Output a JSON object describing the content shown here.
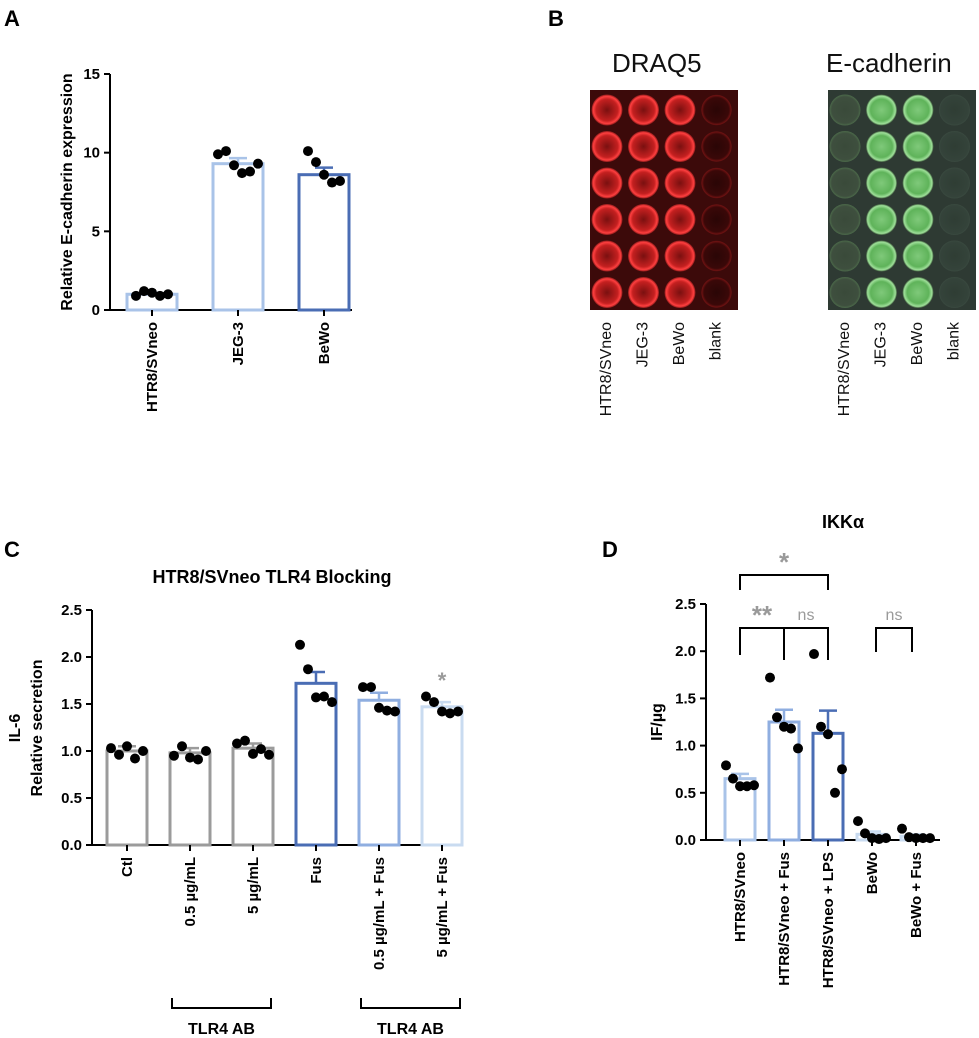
{
  "panel_labels": [
    "A",
    "B",
    "C",
    "D"
  ],
  "blot": {
    "panels": [
      {
        "title": "DRAQ5",
        "stain": "red",
        "lanes": [
          "HTR8/SVneo",
          "JEG-3",
          "BeWo",
          "blank"
        ]
      },
      {
        "title": "E-cadherin",
        "stain": "green",
        "lanes": [
          "HTR8/SVneo",
          "JEG-3",
          "BeWo",
          "blank"
        ]
      }
    ]
  },
  "colors": {
    "light_blue": "#a9c3e8",
    "mid_blue": "#8faee0",
    "dark_blue": "#4a6db4",
    "pale_blue": "#c9dbf0",
    "gray": "#9b9b9b",
    "sig_gray": "#9a9a9a"
  },
  "chart_data": [
    {
      "id": "A",
      "type": "bar",
      "title": "",
      "xlabel": "",
      "ylabel": "Relative E-cadherin expression",
      "ylim": [
        0,
        15
      ],
      "yticks": [
        "0",
        "5",
        "10",
        "15"
      ],
      "categories": [
        "HTR8/SVneo",
        "JEG-3",
        "BeWo"
      ],
      "values": [
        1.0,
        9.3,
        8.6
      ],
      "sem": [
        0.1,
        0.35,
        0.45
      ],
      "points": [
        [
          0.9,
          1.2,
          1.1,
          0.9,
          1.0
        ],
        [
          9.9,
          10.1,
          9.2,
          8.7,
          8.8,
          9.3
        ],
        [
          10.1,
          9.4,
          8.6,
          8.1,
          8.2
        ]
      ],
      "bar_colors": [
        "#a9c3e8",
        "#a9c3e8",
        "#4a6db4"
      ]
    },
    {
      "id": "C",
      "type": "bar",
      "title": "HTR8/SVneo TLR4 Blocking",
      "xlabel": "",
      "ylabel": [
        "IL-6",
        "Relative secretion"
      ],
      "ylim": [
        0,
        2.5
      ],
      "yticks": [
        "0.0",
        "0.5",
        "1.0",
        "1.5",
        "2.0",
        "2.5"
      ],
      "categories": [
        "Ctl",
        "0.5 µg/mL",
        "5 µg/mL",
        "Fus",
        "0.5 µg/mL + Fus",
        "5 µg/mL + Fus"
      ],
      "values": [
        1.0,
        0.98,
        1.03,
        1.72,
        1.54,
        1.47
      ],
      "sem": [
        0.05,
        0.05,
        0.05,
        0.12,
        0.08,
        0.05
      ],
      "points": [
        [
          1.03,
          0.96,
          1.05,
          0.92,
          1.0
        ],
        [
          0.95,
          1.05,
          0.93,
          0.91,
          1.0
        ],
        [
          1.08,
          1.11,
          0.97,
          1.02,
          0.96
        ],
        [
          2.13,
          1.87,
          1.57,
          1.58,
          1.52
        ],
        [
          1.68,
          1.68,
          1.46,
          1.43,
          1.42
        ],
        [
          1.58,
          1.52,
          1.42,
          1.4,
          1.42
        ]
      ],
      "bar_colors": [
        "#9b9b9b",
        "#9b9b9b",
        "#9b9b9b",
        "#4a6db4",
        "#8faee0",
        "#c9dbf0"
      ],
      "annotations": [
        {
          "text": "*",
          "bar": 5
        }
      ],
      "groups": [
        {
          "label": "TLR4 AB",
          "from": 1,
          "to": 2
        },
        {
          "label": "TLR4 AB",
          "from": 4,
          "to": 5
        }
      ]
    },
    {
      "id": "D",
      "type": "bar",
      "title": "IKKα",
      "xlabel": "",
      "ylabel": "IF/µg",
      "ylim": [
        0,
        2.5
      ],
      "yticks": [
        "0.0",
        "0.5",
        "1.0",
        "1.5",
        "2.0",
        "2.5"
      ],
      "categories": [
        "HTR8/SVneo",
        "HTR8/SVneo + Fus",
        "HTR8/SVneo + LPS",
        "BeWo",
        "BeWo + Fus"
      ],
      "values": [
        0.65,
        1.25,
        1.13,
        0.06,
        0.04
      ],
      "sem": [
        0.05,
        0.13,
        0.24,
        0.03,
        0.02
      ],
      "points": [
        [
          0.79,
          0.65,
          0.57,
          0.57,
          0.58
        ],
        [
          1.72,
          1.3,
          1.2,
          1.18,
          0.97
        ],
        [
          1.97,
          1.2,
          1.12,
          0.5,
          0.75
        ],
        [
          0.2,
          0.07,
          0.02,
          0.01,
          0.02
        ],
        [
          0.12,
          0.03,
          0.02,
          0.02,
          0.02
        ]
      ],
      "bar_colors": [
        "#a9c3e8",
        "#8faee0",
        "#4a6db4",
        "#c9dbf0",
        "#c9dbf0"
      ],
      "brackets": [
        {
          "from": 0,
          "to": 2,
          "label": "*",
          "level": 2.5
        },
        {
          "from": 0,
          "to": 1,
          "label": "**",
          "level": 2.0
        },
        {
          "from": 1,
          "to": 2,
          "label": "ns",
          "level": 2.0
        },
        {
          "from": 3,
          "to": 4,
          "label": "ns",
          "level": 2.0
        }
      ]
    }
  ]
}
